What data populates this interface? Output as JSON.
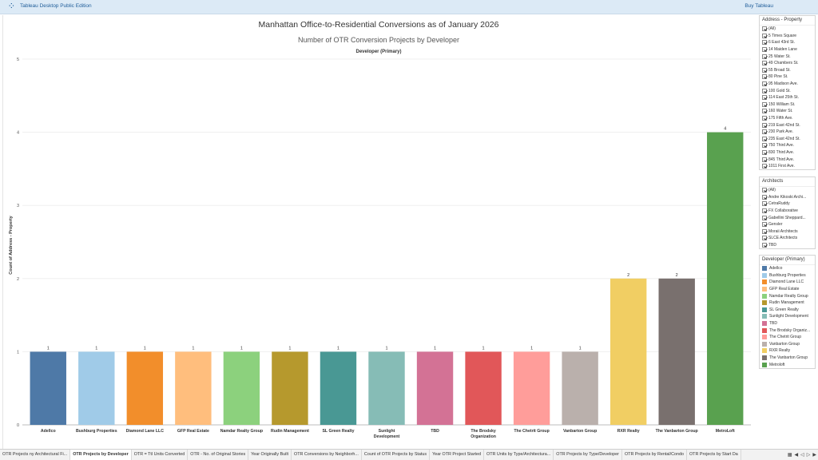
{
  "app": {
    "logo": "⁘",
    "title": "Tableau Desktop Public Edition",
    "buy_label": "Buy Tableau"
  },
  "dashboard": {
    "title": "Manhattan Office-to-Residential Conversions as of January 2026",
    "subtitle": "Number of OTR Conversion Projects by Developer",
    "column_header": "Developer (Primary)"
  },
  "chart_data": {
    "type": "bar",
    "title": "Number of OTR Conversion Projects by Developer",
    "xlabel": "Developer (Primary)",
    "ylabel": "Count of Address - Property",
    "ylim": [
      0,
      5
    ],
    "yticks": [
      0,
      1,
      2,
      3,
      4,
      5
    ],
    "grid": true,
    "categories": [
      "Adellco",
      "Bushburg Properties",
      "Diamond Lane LLC",
      "GFP Real Estate",
      "Namdar Realty Group",
      "Rudin Management",
      "SL Green Realty",
      "Sunlight Development",
      "TBD",
      "The Brodsky Organization",
      "The Chetrit Group",
      "Vanbarton Group",
      "RXR Realty",
      "The Vanbarton Group",
      "MetroLoft"
    ],
    "values": [
      1,
      1,
      1,
      1,
      1,
      1,
      1,
      1,
      1,
      1,
      1,
      1,
      2,
      2,
      4
    ],
    "colors": [
      "#4e79a7",
      "#a0cbe8",
      "#f28e2b",
      "#ffbe7d",
      "#8cd17d",
      "#b6992d",
      "#499894",
      "#86bcb6",
      "#d37295",
      "#e15759",
      "#ff9d9a",
      "#bab0ac",
      "#f1ce63",
      "#79706e",
      "#59a14f"
    ]
  },
  "filters": {
    "address": {
      "header": "Address - Property",
      "items": [
        "(All)",
        "5 Times Square",
        "6 East 43rd St.",
        "14 Maiden Lane",
        "25 Water St.",
        "49 Chambers St.",
        "55 Broad St.",
        "80 Pine St.",
        "95 Madison Ave.",
        "100 Gold St.",
        "114 East 25th St.",
        "150 William St.",
        "160 Water St.",
        "175 Fifth Ave.",
        "219 East 42nd St.",
        "230 Park Ave.",
        "235 East 42nd St.",
        "750 Third Ave.",
        "830 Third Ave.",
        "845 Third Ave.",
        "1011 First Ave."
      ]
    },
    "architects": {
      "header": "Architects",
      "items": [
        "(All)",
        "Andre Kikoski Archi...",
        "CetraRuddy",
        "FX Collaborative",
        "Gabellini Sheppard...",
        "Gensler",
        "Moraii Architects",
        "SLCE Architects",
        "TBD"
      ]
    }
  },
  "legend": {
    "header": "Developer (Primary)",
    "items": [
      {
        "label": "Adellco",
        "color": "#4e79a7"
      },
      {
        "label": "Bushburg Properties",
        "color": "#a0cbe8"
      },
      {
        "label": "Diamond Lane LLC",
        "color": "#f28e2b"
      },
      {
        "label": "GFP Real Estate",
        "color": "#ffbe7d"
      },
      {
        "label": "Namdar Realty Group",
        "color": "#8cd17d"
      },
      {
        "label": "Rudin Management",
        "color": "#b6992d"
      },
      {
        "label": "SL Green Realty",
        "color": "#499894"
      },
      {
        "label": "Sunlight Development",
        "color": "#86bcb6"
      },
      {
        "label": "TBD",
        "color": "#d37295"
      },
      {
        "label": "The Brodsky Organiz...",
        "color": "#e15759"
      },
      {
        "label": "The Chetrit Group",
        "color": "#ff9d9a"
      },
      {
        "label": "Vanbarton Group",
        "color": "#bab0ac"
      },
      {
        "label": "RXR Realty",
        "color": "#f1ce63"
      },
      {
        "label": "The Vanbarton Group",
        "color": "#79706e"
      },
      {
        "label": "Metroloft",
        "color": "#59a14f"
      }
    ]
  },
  "tabs": {
    "items": [
      "OTR Projects ny Architectural Fi...",
      "OTR Projects by Developer",
      "OTR = Ttl Units Converted",
      "OTR - No. of Original Stories",
      "Year Originally Built",
      "OTR Conversions by Neighborh...",
      "Count of OTR Projects by Status",
      "Year OTR Project Started",
      "OTR Units by Type/Architectura...",
      "OTR Projects by Type/Developer",
      "OTR Projects by Rental/Condo",
      "OTR Projects by Start Da"
    ],
    "active_index": 1
  }
}
